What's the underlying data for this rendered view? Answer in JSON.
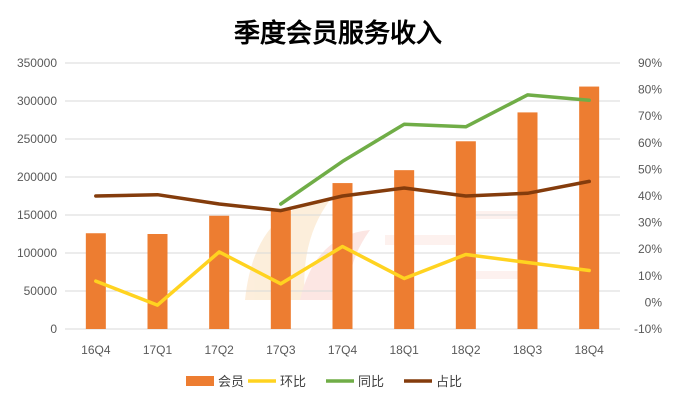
{
  "chart_data": {
    "type": "bar",
    "title": "季度会员服务收入",
    "categories": [
      "16Q4",
      "17Q1",
      "17Q2",
      "17Q3",
      "17Q4",
      "18Q1",
      "18Q2",
      "18Q3",
      "18Q4"
    ],
    "y_left": {
      "ticks": [
        "0",
        "50000",
        "100000",
        "150000",
        "200000",
        "250000",
        "300000",
        "350000"
      ],
      "ylim": [
        0,
        350000
      ]
    },
    "y_right": {
      "ticks": [
        "-10%",
        "0%",
        "10%",
        "20%",
        "30%",
        "40%",
        "50%",
        "60%",
        "70%",
        "80%",
        "90%"
      ],
      "ylim": [
        -0.1,
        0.9
      ]
    },
    "series": [
      {
        "name": "会员",
        "type": "bar",
        "axis": "left",
        "color": "#ED7D31",
        "values": [
          126000,
          125000,
          149000,
          157000,
          192000,
          209000,
          247000,
          285000,
          319000
        ]
      },
      {
        "name": "环比",
        "type": "line",
        "axis": "right",
        "color": "#FFD320",
        "values": [
          0.08,
          -0.01,
          0.19,
          0.07,
          0.21,
          0.09,
          0.18,
          0.15,
          0.12
        ]
      },
      {
        "name": "同比",
        "type": "line",
        "axis": "right",
        "color": "#70AD47",
        "values": [
          null,
          null,
          null,
          0.37,
          0.53,
          0.67,
          0.66,
          0.78,
          0.76
        ]
      },
      {
        "name": "占比",
        "type": "line",
        "axis": "right",
        "color": "#843C0C",
        "values": [
          0.4,
          0.405,
          0.37,
          0.345,
          0.4,
          0.43,
          0.4,
          0.41,
          0.455
        ]
      }
    ],
    "grid": true,
    "legend": "bottom"
  }
}
